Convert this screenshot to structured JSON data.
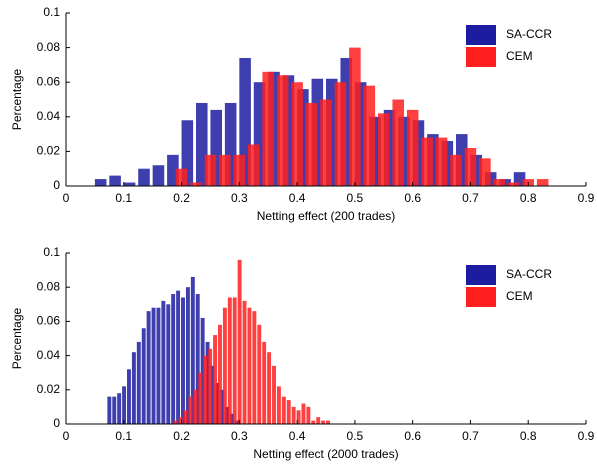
{
  "chart_data": [
    {
      "type": "bar",
      "xlabel": "Netting effect (200 trades)",
      "ylabel": "Percentage",
      "xlim": [
        0,
        0.9
      ],
      "ylim": [
        0,
        0.1
      ],
      "xticks": [
        0,
        0.1,
        0.2,
        0.3,
        0.4,
        0.5,
        0.6,
        0.7,
        0.8,
        0.9
      ],
      "yticks": [
        0,
        0.02,
        0.04,
        0.06,
        0.08,
        0.1
      ],
      "legend": "upper right",
      "series": [
        {
          "name": "SA-CCR",
          "color": "#1c1ca0",
          "x": [
            0.06,
            0.085,
            0.11,
            0.135,
            0.16,
            0.185,
            0.21,
            0.235,
            0.26,
            0.285,
            0.31,
            0.335,
            0.36,
            0.385,
            0.41,
            0.435,
            0.46,
            0.485,
            0.51,
            0.535,
            0.56,
            0.585,
            0.61,
            0.635,
            0.66,
            0.685,
            0.71,
            0.735,
            0.76,
            0.785
          ],
          "values": [
            0.004,
            0.006,
            0.002,
            0.01,
            0.012,
            0.018,
            0.038,
            0.048,
            0.044,
            0.048,
            0.074,
            0.06,
            0.066,
            0.064,
            0.056,
            0.062,
            0.062,
            0.074,
            0.06,
            0.04,
            0.044,
            0.04,
            0.038,
            0.03,
            0.026,
            0.03,
            0.018,
            0.008,
            0.004,
            0.008
          ]
        },
        {
          "name": "CEM",
          "color": "#ff1f1f",
          "x": [
            0.2,
            0.225,
            0.25,
            0.275,
            0.3,
            0.325,
            0.35,
            0.375,
            0.4,
            0.425,
            0.45,
            0.475,
            0.5,
            0.525,
            0.55,
            0.575,
            0.6,
            0.625,
            0.65,
            0.675,
            0.7,
            0.725,
            0.75,
            0.775,
            0.8,
            0.825
          ],
          "values": [
            0.01,
            0.002,
            0.018,
            0.018,
            0.018,
            0.024,
            0.066,
            0.064,
            0.06,
            0.048,
            0.05,
            0.06,
            0.08,
            0.058,
            0.042,
            0.05,
            0.044,
            0.028,
            0.028,
            0.018,
            0.022,
            0.016,
            0.004,
            0.002,
            0.004,
            0.004
          ]
        }
      ]
    },
    {
      "type": "bar",
      "xlabel": "Netting effect (2000 trades)",
      "ylabel": "Percentage",
      "xlim": [
        0,
        0.9
      ],
      "ylim": [
        0,
        0.1
      ],
      "xticks": [
        0,
        0.1,
        0.2,
        0.3,
        0.4,
        0.5,
        0.6,
        0.7,
        0.8,
        0.9
      ],
      "yticks": [
        0,
        0.02,
        0.04,
        0.06,
        0.08,
        0.1
      ],
      "legend": "upper right",
      "series": [
        {
          "name": "SA-CCR",
          "color": "#1c1ca0",
          "x": [
            0.075,
            0.0835,
            0.092,
            0.1005,
            0.109,
            0.1175,
            0.126,
            0.1345,
            0.143,
            0.1515,
            0.16,
            0.1685,
            0.177,
            0.1855,
            0.194,
            0.2025,
            0.211,
            0.2195,
            0.228,
            0.2365,
            0.245,
            0.2535,
            0.262,
            0.2705,
            0.279,
            0.2875,
            0.296
          ],
          "values": [
            0.016,
            0.016,
            0.018,
            0.022,
            0.032,
            0.042,
            0.048,
            0.056,
            0.066,
            0.068,
            0.068,
            0.072,
            0.07,
            0.076,
            0.078,
            0.074,
            0.08,
            0.086,
            0.076,
            0.062,
            0.048,
            0.034,
            0.024,
            0.02,
            0.01,
            0.006,
            0.002
          ]
        },
        {
          "name": "CEM",
          "color": "#ff1f1f",
          "x": [
            0.19,
            0.1985,
            0.207,
            0.2155,
            0.224,
            0.2325,
            0.241,
            0.2495,
            0.258,
            0.2665,
            0.275,
            0.2835,
            0.292,
            0.3005,
            0.309,
            0.3175,
            0.326,
            0.3345,
            0.343,
            0.3515,
            0.36,
            0.3685,
            0.377,
            0.3855,
            0.394,
            0.4025,
            0.411,
            0.4195,
            0.428,
            0.4365,
            0.445,
            0.4535
          ],
          "values": [
            0.002,
            0.004,
            0.008,
            0.016,
            0.02,
            0.03,
            0.04,
            0.044,
            0.052,
            0.058,
            0.068,
            0.074,
            0.074,
            0.096,
            0.072,
            0.068,
            0.066,
            0.058,
            0.048,
            0.042,
            0.034,
            0.022,
            0.016,
            0.014,
            0.01,
            0.008,
            0.012,
            0.01,
            0.002,
            0.004,
            0.002,
            0.002
          ]
        }
      ]
    }
  ]
}
